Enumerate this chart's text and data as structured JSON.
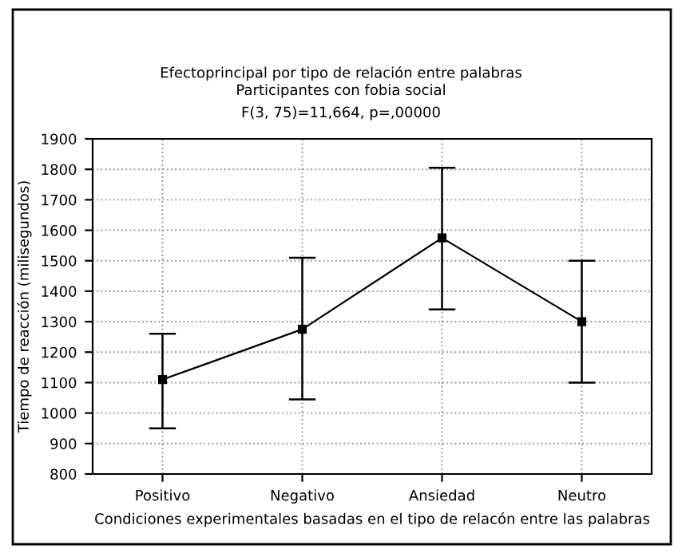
{
  "chart_data": {
    "type": "line",
    "title": "Efectoprincipal por tipo de relación entre palabras",
    "subtitle": "Participantes con fobia social",
    "annotations": [
      "F(3, 75)=11,664, p=,00000"
    ],
    "xlabel": "Condiciones experimentales basadas en el tipo de relacón entre las palabras",
    "ylabel": "Tiempo de reacción (milisegundos)",
    "categories": [
      "Positivo",
      "Negativo",
      "Ansiedad",
      "Neutro"
    ],
    "series": [
      {
        "color": "#000000",
        "values": [
          1110,
          1275,
          1575,
          1300
        ],
        "errors": [
          [
            950,
            1260
          ],
          [
            1045,
            1510
          ],
          [
            1340,
            1805
          ],
          [
            1100,
            1500
          ]
        ]
      }
    ],
    "ylim": [
      800,
      1900
    ],
    "yticks": [
      800,
      900,
      1000,
      1100,
      1200,
      1300,
      1400,
      1500,
      1600,
      1700,
      1800,
      1900
    ],
    "grid": true,
    "marker": "square",
    "line_style": "solid"
  }
}
